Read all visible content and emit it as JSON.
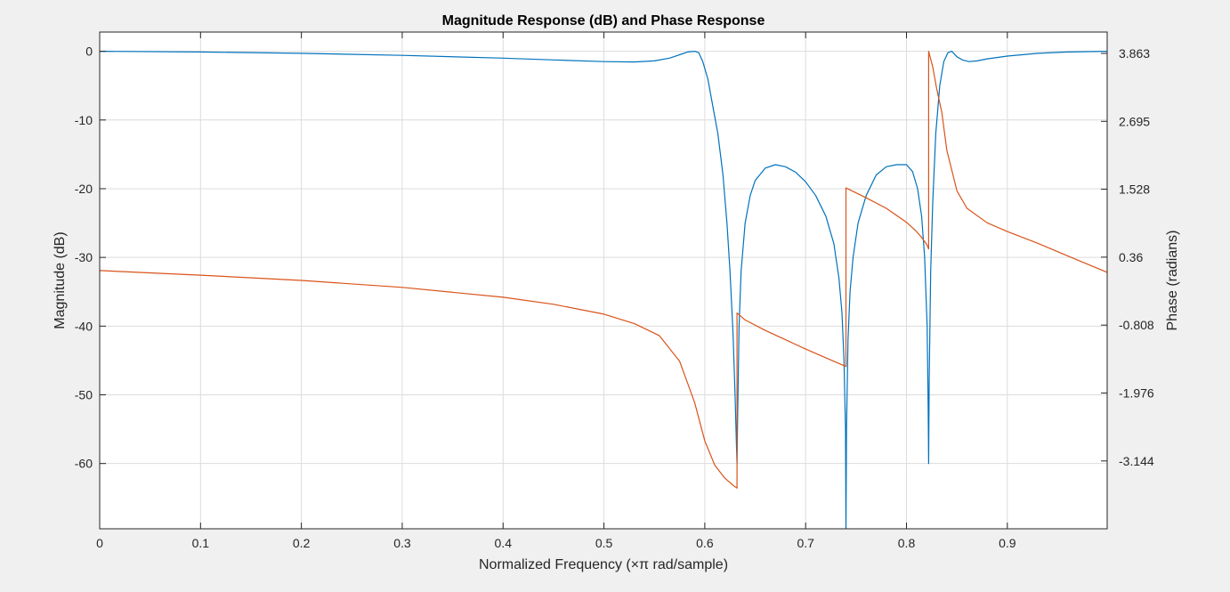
{
  "chart_data": {
    "type": "line",
    "title": "Magnitude Response (dB) and Phase Response",
    "xlabel": "Normalized  Frequency  (×π  rad/sample)",
    "ylabel_left": "Magnitude (dB)",
    "ylabel_right": "Phase (radians)",
    "xlim": [
      0,
      0.999
    ],
    "ylim_left": [
      -69.5,
      2.8
    ],
    "ylim_right": [
      -4.31,
      4.23
    ],
    "x_ticks": [
      0,
      0.1,
      0.2,
      0.3,
      0.4,
      0.5,
      0.6,
      0.7,
      0.8,
      0.9
    ],
    "x_tick_labels": [
      "0",
      "0.1",
      "0.2",
      "0.3",
      "0.4",
      "0.5",
      "0.6",
      "0.7",
      "0.8",
      "0.9"
    ],
    "y_left_ticks": [
      0,
      -10,
      -20,
      -30,
      -40,
      -50,
      -60
    ],
    "y_left_tick_labels": [
      "0",
      "-10",
      "-20",
      "-30",
      "-40",
      "-50",
      "-60"
    ],
    "y_right_ticks": [
      3.863,
      2.695,
      1.528,
      0.36,
      -0.808,
      -1.976,
      -3.144
    ],
    "y_right_tick_labels": [
      "3.863",
      "2.695",
      "1.528",
      "0.36",
      "-0.808",
      "-1.976",
      "-3.144"
    ],
    "grid": true,
    "series": [
      {
        "axis": "left",
        "color": "#0072bd",
        "x": [
          0,
          0.1,
          0.2,
          0.3,
          0.4,
          0.45,
          0.5,
          0.53,
          0.55,
          0.565,
          0.575,
          0.583,
          0.59,
          0.594,
          0.598,
          0.603,
          0.608,
          0.613,
          0.618,
          0.622,
          0.625,
          0.628,
          0.63,
          0.6315,
          0.632,
          0.6325,
          0.634,
          0.636,
          0.64,
          0.645,
          0.65,
          0.66,
          0.67,
          0.68,
          0.69,
          0.7,
          0.71,
          0.72,
          0.728,
          0.733,
          0.736,
          0.738,
          0.7395,
          0.74,
          0.7405,
          0.742,
          0.744,
          0.747,
          0.752,
          0.76,
          0.77,
          0.78,
          0.79,
          0.8,
          0.806,
          0.811,
          0.815,
          0.818,
          0.8205,
          0.8215,
          0.822,
          0.8225,
          0.824,
          0.826,
          0.829,
          0.833,
          0.837,
          0.841,
          0.845,
          0.85,
          0.856,
          0.862,
          0.87,
          0.88,
          0.9,
          0.93,
          0.96,
          0.999
        ],
        "y": [
          0,
          -0.1,
          -0.3,
          -0.6,
          -1.0,
          -1.25,
          -1.5,
          -1.55,
          -1.4,
          -1.0,
          -0.5,
          -0.1,
          0,
          -0.2,
          -1.5,
          -4.0,
          -8.0,
          -12.0,
          -18.0,
          -25.0,
          -32.0,
          -41.0,
          -50.0,
          -58.0,
          -60.0,
          -54.0,
          -40.0,
          -32.0,
          -25.0,
          -21.0,
          -18.8,
          -17.0,
          -16.5,
          -16.8,
          -17.6,
          -19.0,
          -21.0,
          -24.0,
          -28.0,
          -33.0,
          -38.0,
          -45.0,
          -55.0,
          -70.0,
          -55.0,
          -42.0,
          -35.0,
          -30.0,
          -25.0,
          -21.0,
          -18.0,
          -16.8,
          -16.5,
          -16.5,
          -17.5,
          -20.0,
          -24.0,
          -30.0,
          -40.0,
          -52.0,
          -60.0,
          -48.0,
          -32.0,
          -22.0,
          -12.0,
          -5.0,
          -1.5,
          -0.2,
          0,
          -0.8,
          -1.3,
          -1.5,
          -1.4,
          -1.1,
          -0.7,
          -0.3,
          -0.1,
          0
        ]
      },
      {
        "axis": "right",
        "color": "#d95319",
        "x": [
          0,
          0.1,
          0.2,
          0.3,
          0.4,
          0.45,
          0.5,
          0.53,
          0.555,
          0.575,
          0.59,
          0.6,
          0.61,
          0.62,
          0.628,
          0.632,
          0.632,
          0.64,
          0.66,
          0.68,
          0.7,
          0.72,
          0.74,
          0.74,
          0.76,
          0.78,
          0.8,
          0.81,
          0.815,
          0.82,
          0.822,
          0.822,
          0.826,
          0.83,
          0.835,
          0.84,
          0.85,
          0.86,
          0.88,
          0.9,
          0.93,
          0.96,
          0.999
        ],
        "y": [
          0.13,
          0.05,
          -0.04,
          -0.16,
          -0.33,
          -0.45,
          -0.62,
          -0.78,
          -0.99,
          -1.43,
          -2.14,
          -2.8,
          -3.22,
          -3.44,
          -3.56,
          -3.61,
          -0.6,
          -0.72,
          -0.9,
          -1.06,
          -1.22,
          -1.37,
          -1.52,
          1.55,
          1.38,
          1.2,
          0.96,
          0.8,
          0.7,
          0.58,
          0.5,
          3.9,
          3.63,
          3.25,
          2.85,
          2.2,
          1.5,
          1.2,
          0.95,
          0.8,
          0.6,
          0.38,
          0.1
        ]
      }
    ]
  }
}
